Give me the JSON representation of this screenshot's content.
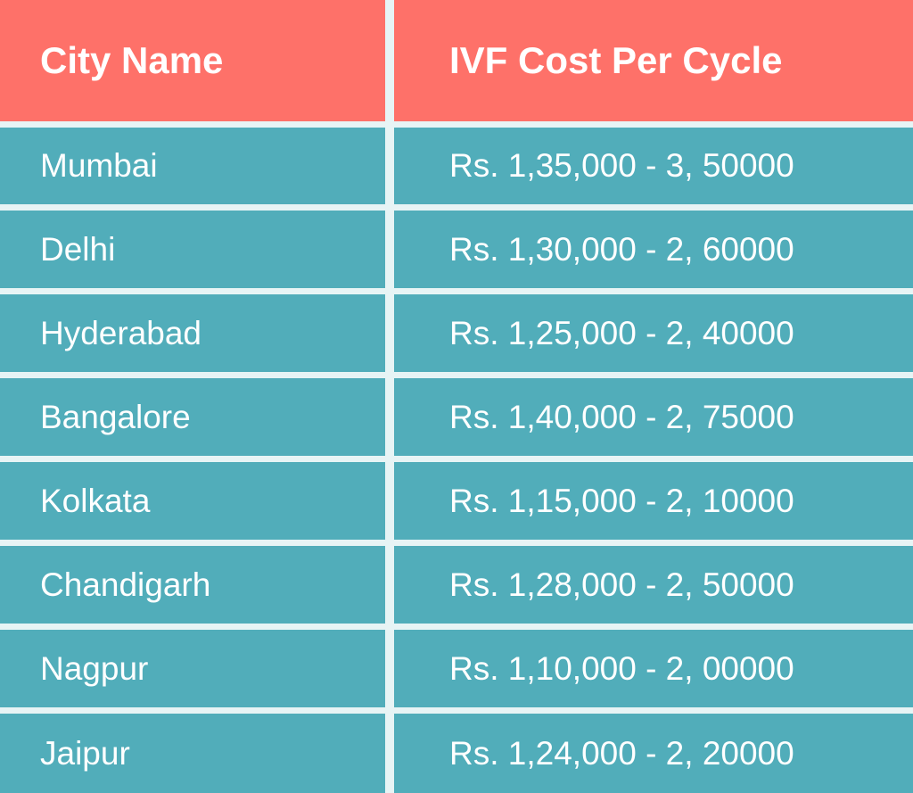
{
  "table": {
    "headers": {
      "city": "City Name",
      "cost": "IVF Cost Per Cycle"
    },
    "rows": [
      {
        "city": "Mumbai",
        "cost": "Rs. 1,35,000  -  3, 50000"
      },
      {
        "city": "Delhi",
        "cost": "Rs. 1,30,000  -  2, 60000"
      },
      {
        "city": "Hyderabad",
        "cost": "Rs. 1,25,000  -  2, 40000"
      },
      {
        "city": "Bangalore",
        "cost": "Rs. 1,40,000  -  2, 75000"
      },
      {
        "city": "Kolkata",
        "cost": "Rs. 1,15,000  -  2, 10000"
      },
      {
        "city": "Chandigarh",
        "cost": "Rs. 1,28,000  -  2, 50000"
      },
      {
        "city": "Nagpur",
        "cost": "Rs. 1,10,000  -  2, 00000"
      },
      {
        "city": "Jaipur",
        "cost": "Rs. 1,24,000  -  2, 20000"
      }
    ]
  },
  "colors": {
    "header_background": "#fe7169",
    "row_background": "#51adba",
    "divider": "#e7f4f5",
    "text": "#ffffff"
  }
}
